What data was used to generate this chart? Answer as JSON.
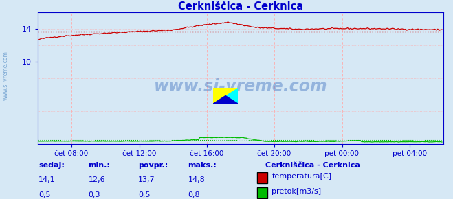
{
  "title": "Cerkniščica - Cerknica",
  "title_color": "#0000cc",
  "bg_color": "#d6e8f5",
  "plot_bg_color": "#d6e8f5",
  "grid_color_dotted": "#ffaaaa",
  "grid_color_vline": "#ffaaaa",
  "x_tick_labels": [
    "čet 08:00",
    "čet 12:00",
    "čet 16:00",
    "čet 20:00",
    "pet 00:00",
    "pet 04:00"
  ],
  "x_tick_fracs": [
    0.083,
    0.25,
    0.417,
    0.583,
    0.75,
    0.917
  ],
  "y_ticks": [
    10,
    14
  ],
  "ylim": [
    0,
    16
  ],
  "xlim": [
    0,
    288
  ],
  "avg_temp": 13.7,
  "avg_flow": 0.5,
  "temp_color": "#cc0000",
  "flow_color": "#00bb00",
  "axis_color": "#0000cc",
  "tick_color": "#0000cc",
  "watermark": "www.si-vreme.com",
  "watermark_color": "#3366bb",
  "watermark_alpha": 0.4,
  "sidebar_text": "www.si-vreme.com",
  "sidebar_color": "#6699cc",
  "legend_title": "Cerkniščica - Cerknica",
  "legend_title_color": "#0000cc",
  "legend_items": [
    {
      "label": "temperatura[C]",
      "color": "#cc0000"
    },
    {
      "label": "pretok[m3/s]",
      "color": "#00bb00"
    }
  ],
  "stats_headers": [
    "sedaj:",
    "min.:",
    "povpr.:",
    "maks.:"
  ],
  "stats_temp": [
    "14,1",
    "12,6",
    "13,7",
    "14,8"
  ],
  "stats_flow": [
    "0,5",
    "0,3",
    "0,5",
    "0,8"
  ],
  "n_points": 288
}
